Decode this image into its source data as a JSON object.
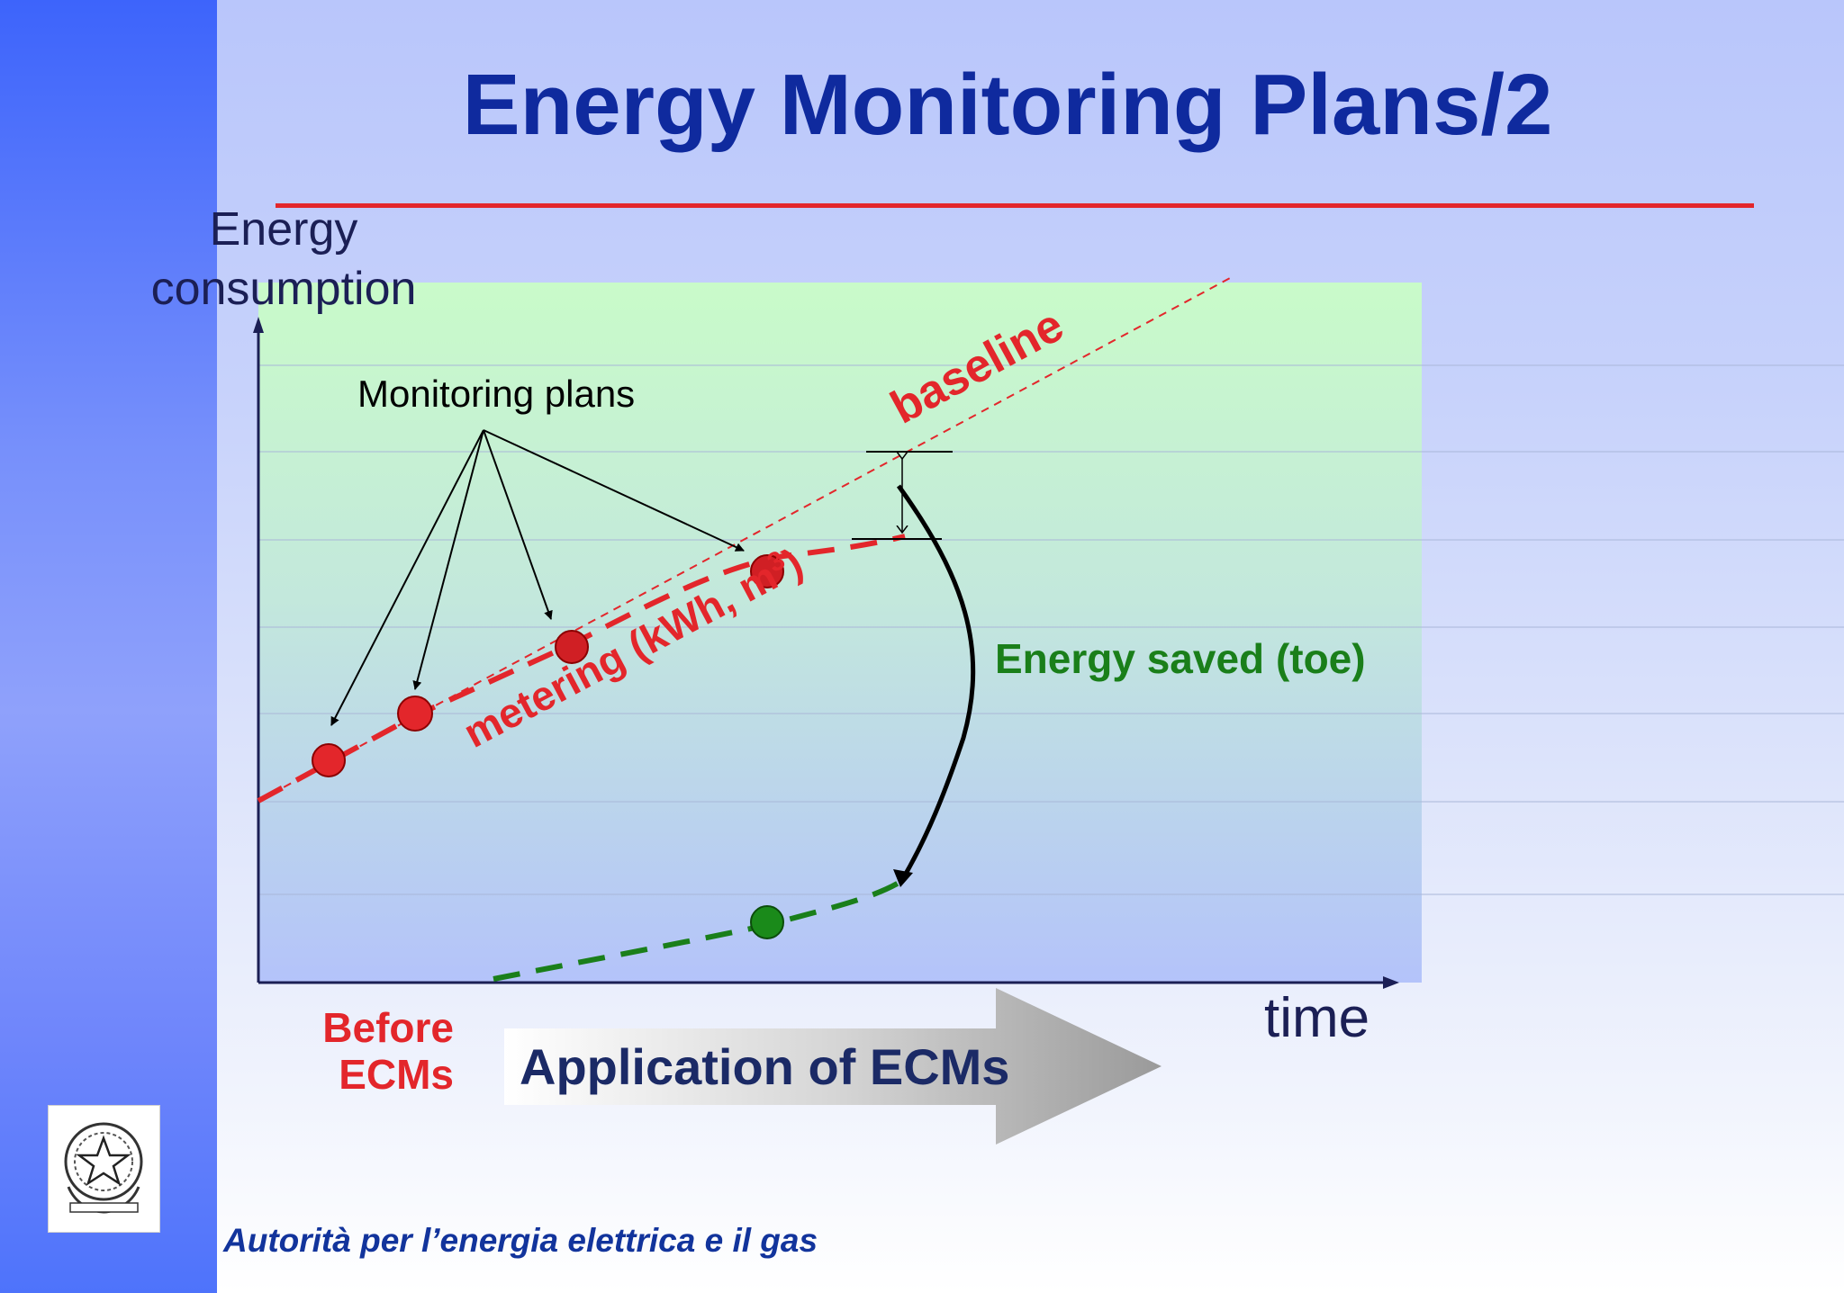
{
  "slide": {
    "title": "Energy Monitoring Plans/2",
    "footer": "Autorità per l’energia elettrica e il gas"
  },
  "diagram": {
    "y_axis_label_line1": "Energy",
    "y_axis_label_line2": "consumption",
    "x_axis_label": "time",
    "callout_label": "Monitoring plans",
    "baseline_label": "baseline",
    "metering_label": "metering (kWh, m",
    "metering_superscript": "3",
    "metering_close": ")",
    "saved_label": "Energy saved (toe)",
    "before_line1": "Before",
    "before_line2": "ECMs",
    "arrow_label": "Application of ECMs"
  },
  "colors": {
    "accent_red": "#e3262b",
    "title_blue": "#0f2a9e",
    "saved_green": "#1a7f1a",
    "dark_navy": "#1b1f55"
  },
  "icons": {
    "logo": "italian-republic-emblem-icon"
  }
}
